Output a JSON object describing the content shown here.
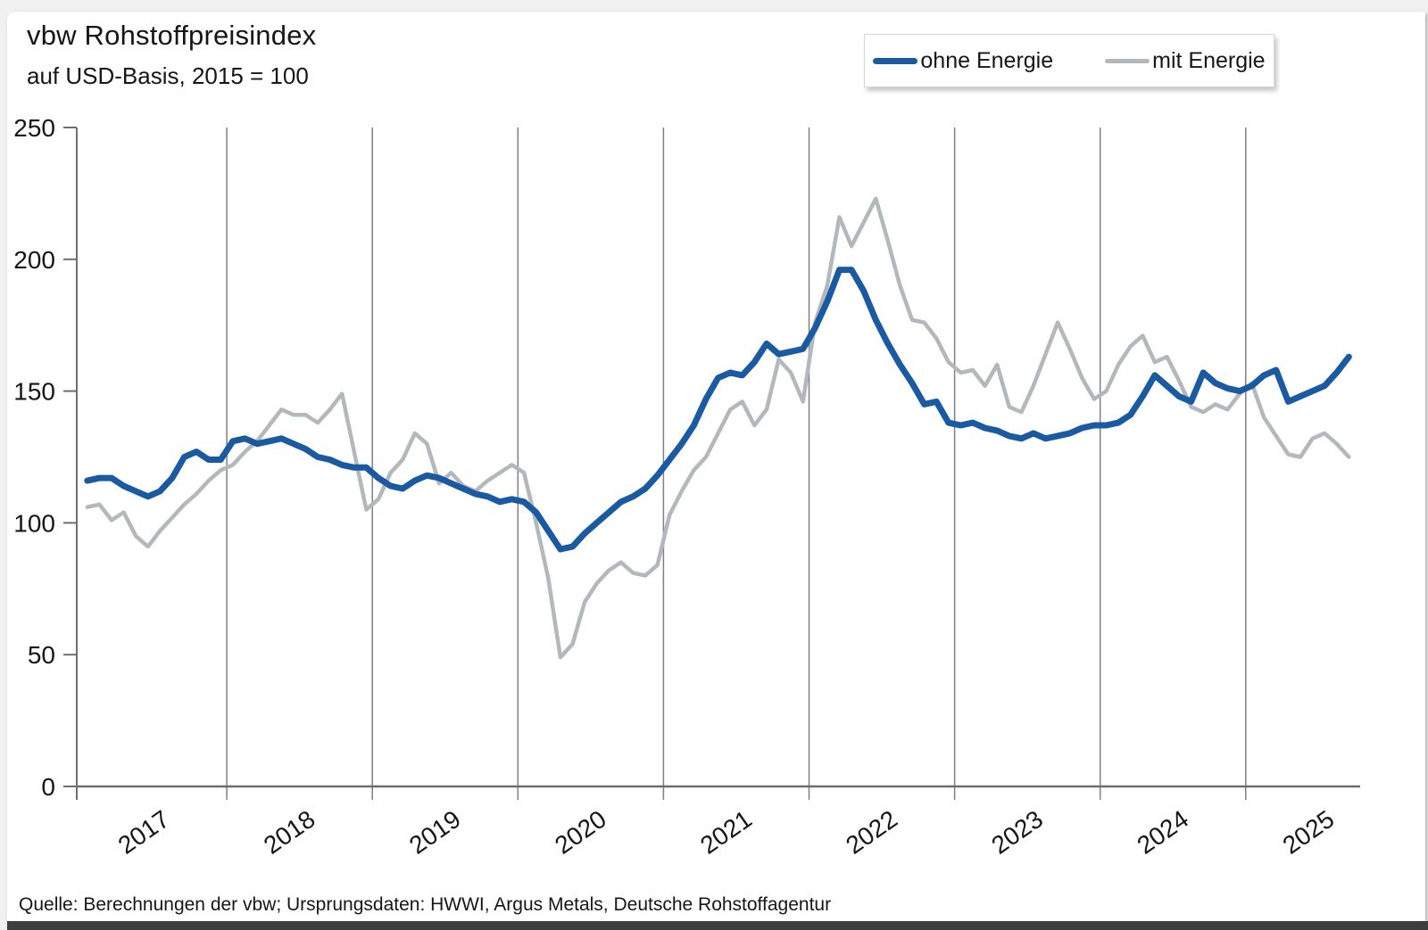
{
  "frame": {
    "accent_color": "#c00000",
    "bottom_bar_color": "#3e3e3e"
  },
  "header": {
    "title": "vbw Rohstoffpreisindex",
    "subtitle": "auf USD-Basis, 2015 = 100"
  },
  "legend": {
    "items": [
      {
        "label": "ohne Energie",
        "color": "#1a5aa2"
      },
      {
        "label": "mit Energie",
        "color": "#b3b8bc"
      }
    ]
  },
  "source_note": "Quelle: Berechnungen der vbw; Ursprungsdaten: HWWI, Argus Metals, Deutsche Rohstoffagentur",
  "chart_data": {
    "type": "line",
    "title": "vbw Rohstoffpreisindex",
    "subtitle": "auf USD-Basis, 2015 = 100",
    "frequency": "monthly",
    "start_month": "2017-01",
    "end_month": "2025-09",
    "x_year_labels": [
      "2017",
      "2018",
      "2019",
      "2020",
      "2021",
      "2022",
      "2023",
      "2024",
      "2025"
    ],
    "y_ticks": [
      0,
      50,
      100,
      150,
      200,
      250
    ],
    "ylim": [
      0,
      250
    ],
    "grid": "vertical-year-boundaries",
    "legend_position": "top-right",
    "axis_color": "#6e6e6e",
    "gridline_color": "#808080",
    "series": [
      {
        "name": "ohne Energie",
        "color": "#1a5aa2",
        "stroke_width": 7,
        "values": [
          116,
          117,
          117,
          114,
          112,
          110,
          112,
          117,
          125,
          127,
          124,
          124,
          131,
          132,
          130,
          131,
          132,
          130,
          128,
          125,
          124,
          122,
          121,
          121,
          117,
          114,
          113,
          116,
          118,
          117,
          115,
          113,
          111,
          110,
          108,
          109,
          108,
          104,
          97,
          90,
          91,
          96,
          100,
          104,
          108,
          110,
          113,
          118,
          124,
          130,
          137,
          147,
          155,
          157,
          156,
          161,
          168,
          164,
          165,
          166,
          174,
          184,
          196,
          196,
          188,
          177,
          168,
          160,
          153,
          145,
          146,
          138,
          137,
          138,
          136,
          135,
          133,
          132,
          134,
          132,
          133,
          134,
          136,
          137,
          137,
          138,
          141,
          148,
          156,
          152,
          148,
          146,
          157,
          153,
          151,
          150,
          152,
          156,
          158,
          146,
          148,
          150,
          152,
          157,
          163
        ]
      },
      {
        "name": "mit Energie",
        "color": "#b3b8bc",
        "stroke_width": 4.5,
        "values": [
          106,
          107,
          101,
          104,
          95,
          91,
          97,
          102,
          107,
          111,
          116,
          120,
          122,
          127,
          131,
          137,
          143,
          141,
          141,
          138,
          143,
          149,
          127,
          105,
          109,
          119,
          124,
          134,
          130,
          115,
          119,
          114,
          112,
          116,
          119,
          122,
          119,
          100,
          79,
          49,
          54,
          70,
          77,
          82,
          85,
          81,
          80,
          84,
          103,
          112,
          120,
          125,
          134,
          143,
          146,
          137,
          143,
          162,
          157,
          146,
          176,
          190,
          216,
          205,
          214,
          223,
          207,
          190,
          177,
          176,
          170,
          161,
          157,
          158,
          152,
          160,
          144,
          142,
          152,
          164,
          176,
          166,
          155,
          147,
          150,
          160,
          167,
          171,
          161,
          163,
          154,
          144,
          142,
          145,
          143,
          149,
          153,
          140,
          133,
          126,
          125,
          132,
          134,
          130,
          125
        ]
      }
    ]
  }
}
